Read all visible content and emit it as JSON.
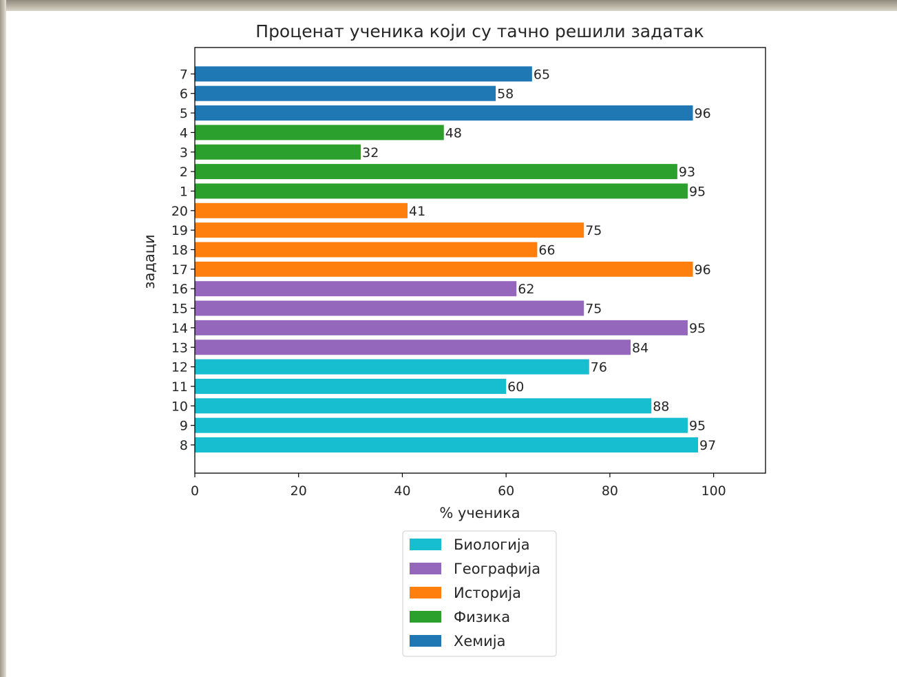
{
  "chart_data": {
    "type": "bar",
    "orientation": "horizontal",
    "title": "Проценат ученика који су тачно решили задатак",
    "xlabel": "% ученика",
    "ylabel": "задаци",
    "xlim": [
      0,
      110
    ],
    "xticks": [
      0,
      20,
      40,
      60,
      80,
      100
    ],
    "grid": false,
    "legend_position": "bottom-center",
    "categories": [
      "8",
      "9",
      "10",
      "11",
      "12",
      "13",
      "14",
      "15",
      "16",
      "17",
      "18",
      "19",
      "20",
      "1",
      "2",
      "3",
      "4",
      "5",
      "6",
      "7"
    ],
    "values": [
      97,
      95,
      88,
      60,
      76,
      84,
      95,
      75,
      62,
      96,
      66,
      75,
      41,
      95,
      93,
      32,
      48,
      96,
      58,
      65
    ],
    "bar_series": [
      "Биологија",
      "Биологија",
      "Биологија",
      "Биологија",
      "Биологија",
      "Географија",
      "Географија",
      "Географија",
      "Географија",
      "Историја",
      "Историја",
      "Историја",
      "Историја",
      "Физика",
      "Физика",
      "Физика",
      "Физика",
      "Хемија",
      "Хемија",
      "Хемија"
    ],
    "series": [
      {
        "name": "Биологија",
        "color": "#17becf"
      },
      {
        "name": "Географија",
        "color": "#9467bd"
      },
      {
        "name": "Историја",
        "color": "#ff7f0e"
      },
      {
        "name": "Физика",
        "color": "#2ca02c"
      },
      {
        "name": "Хемија",
        "color": "#1f77b4"
      }
    ]
  }
}
